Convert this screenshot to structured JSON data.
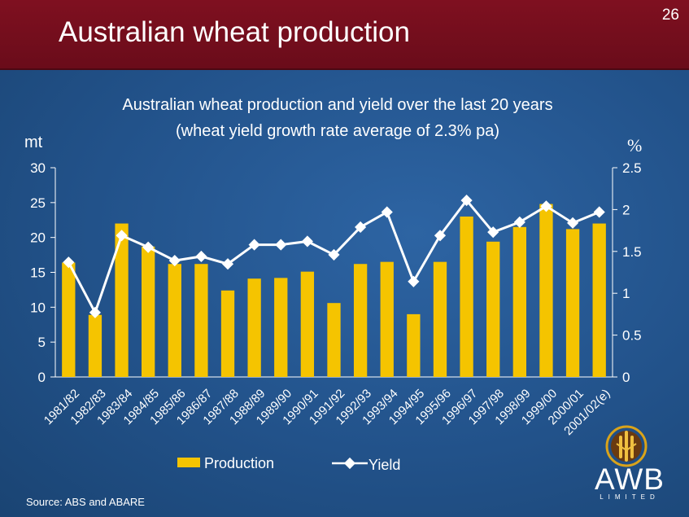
{
  "header": {
    "title": "Australian wheat production",
    "slide_number": "26"
  },
  "footer": {
    "source": "Source: ABS and ABARE"
  },
  "logo": {
    "text": "AWB",
    "subtext": "LIMITED"
  },
  "colors": {
    "header_bg": "#7f1020",
    "slide_bg": "#22528a",
    "bar": "#f5c400",
    "line": "#ffffff"
  },
  "chart_data": {
    "type": "bar",
    "title_lines": [
      "Australian wheat production and yield over the last 20 years",
      "(wheat yield growth rate average of 2.3% pa)"
    ],
    "ylabel": "mt",
    "y2label": "%",
    "ylim": [
      0,
      30
    ],
    "y2lim": [
      0,
      2.5
    ],
    "yticks": [
      0,
      5,
      10,
      15,
      20,
      25,
      30
    ],
    "y2ticks": [
      "0",
      "0.5",
      "1",
      "1.5",
      "2",
      "2.5"
    ],
    "categories": [
      "1981/82",
      "1982/83",
      "1983/84",
      "1984/85",
      "1985/86",
      "1986/87",
      "1987/88",
      "1988/89",
      "1989/90",
      "1990/91",
      "1991/92",
      "1992/93",
      "1993/94",
      "1994/95",
      "1995/96",
      "1996/97",
      "1997/98",
      "1998/99",
      "1999/00",
      "2000/01",
      "2001/02(e)"
    ],
    "series": [
      {
        "name": "Production",
        "type": "bar",
        "axis": "left",
        "values": [
          16.4,
          8.9,
          22.0,
          18.7,
          16.2,
          16.2,
          12.4,
          14.1,
          14.2,
          15.1,
          10.6,
          16.2,
          16.5,
          9.0,
          16.5,
          23.0,
          19.4,
          21.5,
          24.8,
          21.2,
          22.0
        ]
      },
      {
        "name": "Yield",
        "type": "line",
        "axis": "right",
        "values": [
          1.37,
          0.77,
          1.69,
          1.55,
          1.39,
          1.44,
          1.35,
          1.58,
          1.58,
          1.62,
          1.46,
          1.79,
          1.97,
          1.14,
          1.69,
          2.11,
          1.73,
          1.85,
          2.04,
          1.84,
          1.97
        ]
      }
    ],
    "legend": {
      "placement": "bottom-center"
    },
    "grid": false
  }
}
